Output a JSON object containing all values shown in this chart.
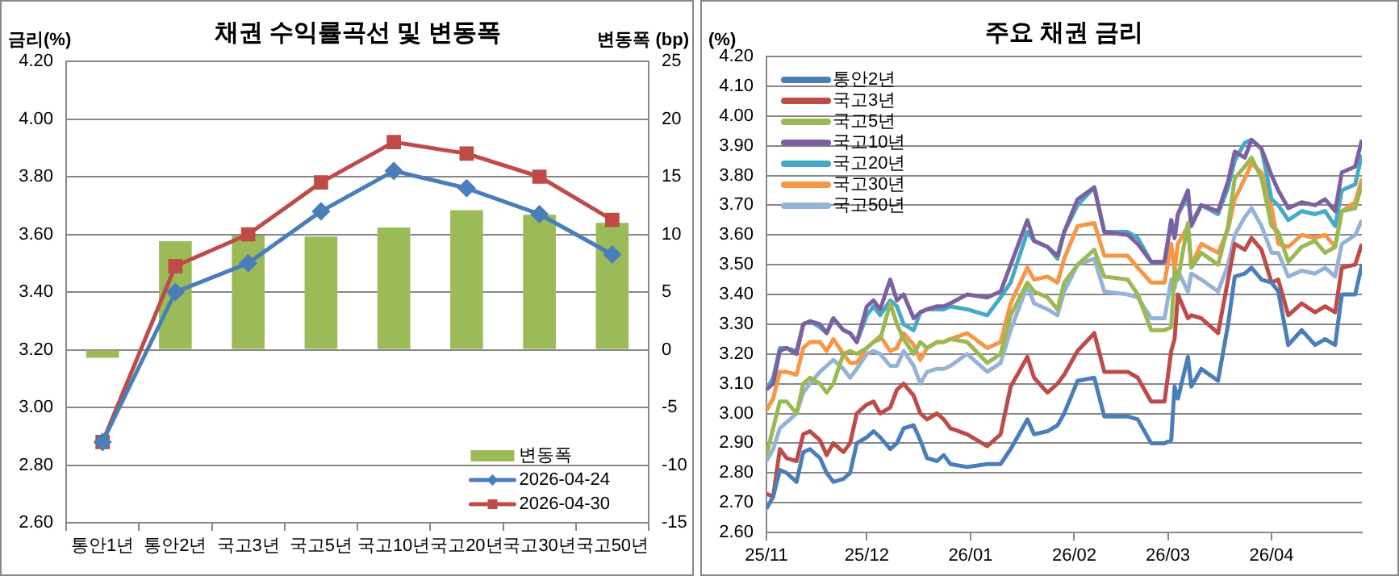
{
  "chart_data": [
    {
      "type": "bar",
      "title": "채권 수익률곡선 및 변동폭",
      "ylabel": "금리(%)",
      "y2label": "변동폭 (bp)",
      "categories": [
        "통안1년",
        "통안2년",
        "국고3년",
        "국고5년",
        "국고10년",
        "국고20년",
        "국고30년",
        "국고50년"
      ],
      "series": [
        {
          "name": "변동폭",
          "axis": "y2",
          "color": "#9bbb59",
          "values": [
            -0.7,
            9.4,
            9.9,
            9.8,
            10.6,
            12.1,
            11.7,
            11.0
          ]
        },
        {
          "name": "2026-04-24",
          "type": "line",
          "marker": "diamond",
          "color": "#4a7ebb",
          "values": [
            2.88,
            3.4,
            3.5,
            3.68,
            3.82,
            3.76,
            3.67,
            3.53
          ]
        },
        {
          "name": "2026-04-30",
          "type": "line",
          "marker": "square",
          "color": "#be4b48",
          "values": [
            2.88,
            3.49,
            3.6,
            3.78,
            3.92,
            3.88,
            3.8,
            3.65
          ]
        }
      ],
      "ylim": [
        2.6,
        4.2
      ],
      "yticks": [
        {
          "value": 2.6,
          "label": "2.60"
        },
        {
          "value": 2.8,
          "label": "2.80"
        },
        {
          "value": 3.0,
          "label": "3.00"
        },
        {
          "value": 3.2,
          "label": "3.20"
        },
        {
          "value": 3.4,
          "label": "3.40"
        },
        {
          "value": 3.6,
          "label": "3.60"
        },
        {
          "value": 3.8,
          "label": "3.80"
        },
        {
          "value": 4.0,
          "label": "4.00"
        },
        {
          "value": 4.2,
          "label": "4.20"
        }
      ],
      "y2lim": [
        -15,
        25
      ],
      "y2ticks": [
        -15,
        -10,
        -5,
        0,
        5,
        10,
        15,
        20,
        25
      ],
      "grid": "y",
      "legend": "bottom right"
    },
    {
      "type": "line",
      "title": "주요 채권 금리",
      "ylabel": "(%)",
      "marker": "none",
      "x": [
        "2025-11-01",
        "2025-11-03",
        "2025-11-05",
        "2025-11-07",
        "2025-11-10",
        "2025-11-12",
        "2025-11-14",
        "2025-11-17",
        "2025-11-19",
        "2025-11-21",
        "2025-11-24",
        "2025-11-26",
        "2025-11-28",
        "2025-12-01",
        "2025-12-03",
        "2025-12-05",
        "2025-12-08",
        "2025-12-10",
        "2025-12-12",
        "2025-12-15",
        "2025-12-17",
        "2025-12-19",
        "2025-12-22",
        "2025-12-24",
        "2025-12-26",
        "2025-12-31",
        "2026-01-06",
        "2026-01-10",
        "2026-01-13",
        "2026-01-18",
        "2026-01-20",
        "2026-01-24",
        "2026-01-27",
        "2026-01-29",
        "2026-02-02",
        "2026-02-07",
        "2026-02-10",
        "2026-02-17",
        "2026-02-20",
        "2026-02-24",
        "2026-02-28",
        "2026-03-02",
        "2026-03-03",
        "2026-03-04",
        "2026-03-07",
        "2026-03-08",
        "2026-03-11",
        "2026-03-16",
        "2026-03-19",
        "2026-03-21",
        "2026-03-24",
        "2026-03-26",
        "2026-03-29",
        "2026-04-01",
        "2026-04-03",
        "2026-04-06",
        "2026-04-10",
        "2026-04-14",
        "2026-04-17",
        "2026-04-20",
        "2026-04-22",
        "2026-04-26",
        "2026-04-28"
      ],
      "series": [
        {
          "name": "통안2년",
          "color": "#4a7ebb",
          "values": [
            2.68,
            2.72,
            2.81,
            2.8,
            2.77,
            2.87,
            2.88,
            2.85,
            2.8,
            2.77,
            2.78,
            2.8,
            2.9,
            2.92,
            2.94,
            2.92,
            2.88,
            2.9,
            2.95,
            2.96,
            2.91,
            2.85,
            2.84,
            2.86,
            2.83,
            2.82,
            2.83,
            2.83,
            2.88,
            2.98,
            2.93,
            2.94,
            2.96,
            3.0,
            3.11,
            3.12,
            2.99,
            2.99,
            2.98,
            2.9,
            2.9,
            2.91,
            3.09,
            3.05,
            3.19,
            3.09,
            3.15,
            3.11,
            3.3,
            3.46,
            3.47,
            3.49,
            3.45,
            3.44,
            3.41,
            3.23,
            3.28,
            3.23,
            3.25,
            3.23,
            3.4,
            3.4,
            3.5
          ]
        },
        {
          "name": "국고3년",
          "color": "#be4b48",
          "values": [
            2.73,
            2.72,
            2.88,
            2.85,
            2.84,
            2.93,
            2.94,
            2.91,
            2.86,
            2.9,
            2.87,
            2.9,
            3.0,
            3.03,
            3.04,
            3.0,
            3.02,
            3.08,
            3.1,
            3.06,
            3.0,
            2.98,
            3.0,
            2.98,
            2.95,
            2.93,
            2.89,
            2.93,
            3.09,
            3.19,
            3.12,
            3.07,
            3.1,
            3.13,
            3.21,
            3.27,
            3.14,
            3.14,
            3.12,
            3.04,
            3.04,
            3.21,
            3.25,
            3.4,
            3.32,
            3.33,
            3.32,
            3.27,
            3.45,
            3.57,
            3.55,
            3.59,
            3.55,
            3.44,
            3.45,
            3.33,
            3.37,
            3.34,
            3.36,
            3.34,
            3.49,
            3.5,
            3.57
          ]
        },
        {
          "name": "국고5년",
          "color": "#98b954",
          "values": [
            2.86,
            2.95,
            3.04,
            3.04,
            3.0,
            3.1,
            3.12,
            3.1,
            3.07,
            3.1,
            3.2,
            3.21,
            3.2,
            3.22,
            3.24,
            3.25,
            3.37,
            3.3,
            3.25,
            3.2,
            3.24,
            3.22,
            3.24,
            3.24,
            3.25,
            3.24,
            3.17,
            3.2,
            3.33,
            3.44,
            3.41,
            3.39,
            3.35,
            3.44,
            3.5,
            3.55,
            3.46,
            3.45,
            3.4,
            3.28,
            3.28,
            3.29,
            3.48,
            3.45,
            3.64,
            3.49,
            3.54,
            3.5,
            3.63,
            3.79,
            3.83,
            3.86,
            3.79,
            3.63,
            3.61,
            3.51,
            3.56,
            3.58,
            3.54,
            3.56,
            3.68,
            3.69,
            3.77
          ]
        },
        {
          "name": "국고10년",
          "color": "#7d60a0",
          "values": [
            3.08,
            3.1,
            3.21,
            3.22,
            3.2,
            3.3,
            3.31,
            3.3,
            3.27,
            3.32,
            3.28,
            3.27,
            3.24,
            3.36,
            3.38,
            3.35,
            3.45,
            3.38,
            3.4,
            3.32,
            3.34,
            3.35,
            3.36,
            3.36,
            3.37,
            3.4,
            3.39,
            3.41,
            3.5,
            3.65,
            3.58,
            3.56,
            3.53,
            3.61,
            3.72,
            3.76,
            3.61,
            3.6,
            3.57,
            3.51,
            3.51,
            3.65,
            3.59,
            3.67,
            3.75,
            3.63,
            3.7,
            3.68,
            3.78,
            3.88,
            3.86,
            3.92,
            3.89,
            3.8,
            3.75,
            3.69,
            3.71,
            3.7,
            3.72,
            3.68,
            3.81,
            3.83,
            3.92
          ]
        },
        {
          "name": "국고20년",
          "color": "#46aac5",
          "values": [
            3.08,
            3.12,
            3.22,
            3.22,
            3.21,
            3.3,
            3.31,
            3.29,
            3.27,
            3.32,
            3.28,
            3.27,
            3.24,
            3.33,
            3.36,
            3.33,
            3.38,
            3.36,
            3.3,
            3.28,
            3.34,
            3.35,
            3.35,
            3.35,
            3.36,
            3.35,
            3.33,
            3.39,
            3.44,
            3.61,
            3.58,
            3.56,
            3.52,
            3.61,
            3.7,
            3.76,
            3.61,
            3.61,
            3.59,
            3.51,
            3.51,
            3.65,
            3.59,
            3.67,
            3.73,
            3.64,
            3.7,
            3.67,
            3.76,
            3.85,
            3.91,
            3.92,
            3.89,
            3.72,
            3.7,
            3.65,
            3.68,
            3.67,
            3.68,
            3.63,
            3.75,
            3.77,
            3.87
          ]
        },
        {
          "name": "국고30년",
          "color": "#f79646",
          "values": [
            3.01,
            3.05,
            3.14,
            3.14,
            3.13,
            3.22,
            3.24,
            3.24,
            3.21,
            3.25,
            3.2,
            3.17,
            3.17,
            3.22,
            3.24,
            3.26,
            3.21,
            3.22,
            3.27,
            3.23,
            3.18,
            3.22,
            3.24,
            3.24,
            3.25,
            3.27,
            3.22,
            3.24,
            3.37,
            3.49,
            3.45,
            3.46,
            3.44,
            3.52,
            3.63,
            3.64,
            3.53,
            3.53,
            3.49,
            3.44,
            3.44,
            3.57,
            3.48,
            3.57,
            3.63,
            3.5,
            3.57,
            3.54,
            3.62,
            3.72,
            3.79,
            3.84,
            3.81,
            3.69,
            3.57,
            3.56,
            3.6,
            3.59,
            3.6,
            3.56,
            3.68,
            3.71,
            3.79
          ]
        },
        {
          "name": "국고50년",
          "color": "#95b3d7",
          "values": [
            2.84,
            2.88,
            2.95,
            2.97,
            3.0,
            3.07,
            3.1,
            3.14,
            3.16,
            3.18,
            3.15,
            3.12,
            3.15,
            3.2,
            3.21,
            3.2,
            3.16,
            3.16,
            3.21,
            3.16,
            3.1,
            3.14,
            3.15,
            3.15,
            3.16,
            3.2,
            3.14,
            3.17,
            3.28,
            3.43,
            3.37,
            3.35,
            3.33,
            3.41,
            3.5,
            3.52,
            3.41,
            3.4,
            3.39,
            3.32,
            3.32,
            3.45,
            3.42,
            3.48,
            3.41,
            3.47,
            3.45,
            3.41,
            3.5,
            3.6,
            3.66,
            3.69,
            3.63,
            3.54,
            3.54,
            3.46,
            3.48,
            3.47,
            3.49,
            3.46,
            3.57,
            3.6,
            3.65
          ]
        }
      ],
      "xlim": [
        "2025-11-01",
        "2026-04-28"
      ],
      "xticks": [
        {
          "value": "2025-11-01",
          "label": "25/11"
        },
        {
          "value": "2025-12-01",
          "label": "25/12"
        },
        {
          "value": "2026-01-01",
          "label": "26/01"
        },
        {
          "value": "2026-02-01",
          "label": "26/02"
        },
        {
          "value": "2026-03-01",
          "label": "26/03"
        },
        {
          "value": "2026-04-01",
          "label": "26/04"
        }
      ],
      "ylim": [
        2.6,
        4.2
      ],
      "yticks": [
        {
          "value": 2.6,
          "label": "2.60"
        },
        {
          "value": 2.7,
          "label": "2.70"
        },
        {
          "value": 2.8,
          "label": "2.80"
        },
        {
          "value": 2.9,
          "label": "2.90"
        },
        {
          "value": 3.0,
          "label": "3.00"
        },
        {
          "value": 3.1,
          "label": "3.10"
        },
        {
          "value": 3.2,
          "label": "3.20"
        },
        {
          "value": 3.3,
          "label": "3.30"
        },
        {
          "value": 3.4,
          "label": "3.40"
        },
        {
          "value": 3.5,
          "label": "3.50"
        },
        {
          "value": 3.6,
          "label": "3.60"
        },
        {
          "value": 3.7,
          "label": "3.70"
        },
        {
          "value": 3.8,
          "label": "3.80"
        },
        {
          "value": 3.9,
          "label": "3.90"
        },
        {
          "value": 4.0,
          "label": "4.00"
        },
        {
          "value": 4.1,
          "label": "4.10"
        },
        {
          "value": 4.2,
          "label": "4.20"
        }
      ],
      "grid": "y",
      "legend": "top left"
    }
  ]
}
